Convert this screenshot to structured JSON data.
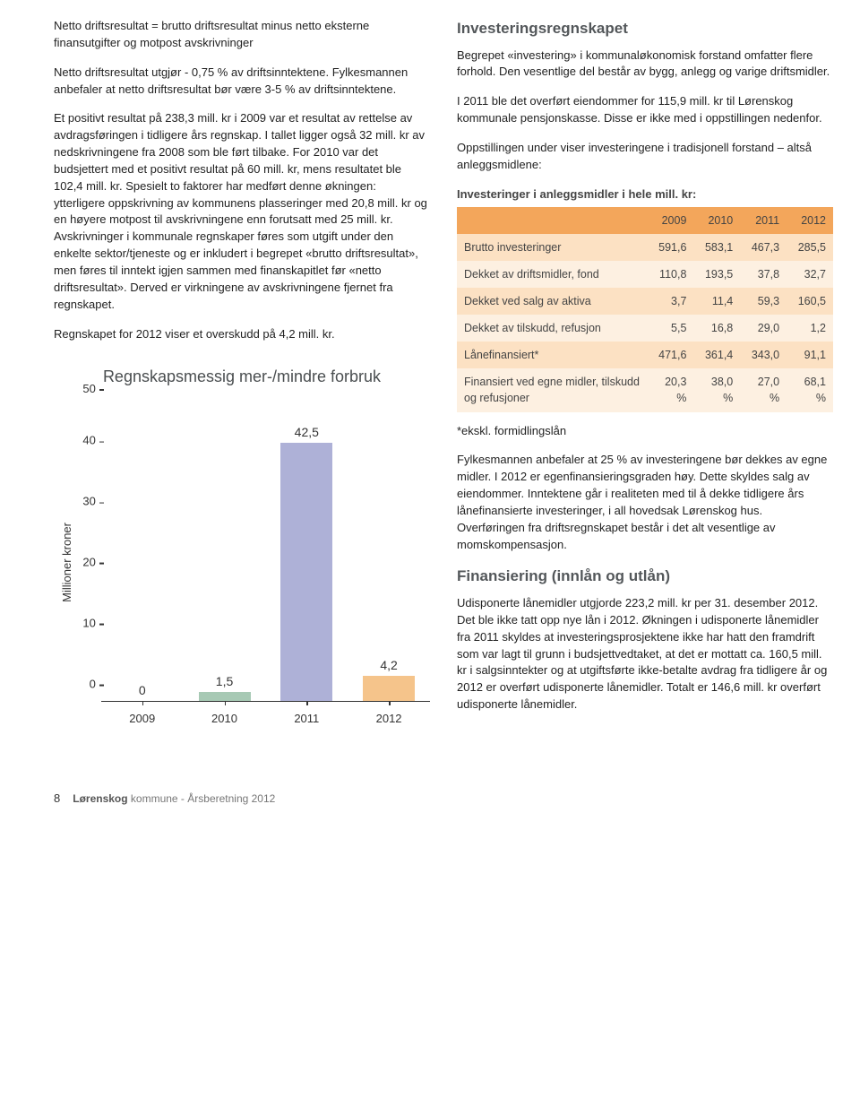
{
  "left": {
    "p1": "Netto driftsresultat = brutto driftsresultat minus netto eksterne finansutgifter og motpost avskrivninger",
    "p2": "Netto driftsresultat utgjør - 0,75 % av driftsinntektene. Fylkesmannen anbefaler at netto driftsresultat bør være 3-5 % av driftsinntektene.",
    "p3": "Et positivt resultat på 238,3 mill. kr i 2009 var et resultat av rettelse av avdragsføringen i tidligere års regnskap. I tallet ligger også 32 mill. kr av nedskrivningene fra 2008 som ble ført tilbake. For 2010 var det budsjettert med et positivt resultat på 60 mill. kr, mens resultatet ble 102,4 mill. kr. Spesielt to faktorer har medført denne økningen: ytterligere oppskrivning av kommunens plasseringer med 20,8 mill. kr og en høyere motpost til avskrivningene enn forutsatt med 25 mill. kr. Avskrivninger i kommunale regnskaper føres som utgift under den enkelte sektor/tjeneste og er inkludert i begrepet «brutto driftsresultat», men føres til inntekt igjen sammen med finanskapitlet før «netto driftsresultat». Derved er virkningene av avskrivningene fjernet fra regnskapet.",
    "p4": "Regnskapet for 2012 viser et overskudd på 4,2 mill. kr."
  },
  "chart": {
    "title": "Regnskapsmessig mer-/mindre forbruk",
    "ylabel": "Millioner kroner",
    "ylim_max": 50,
    "yticks": [
      50,
      40,
      30,
      20,
      10,
      0
    ],
    "categories": [
      "2009",
      "2010",
      "2011",
      "2012"
    ],
    "values": [
      0,
      1.5,
      42.5,
      4.2
    ],
    "value_labels": [
      "0",
      "1,5",
      "42,5",
      "4,2"
    ],
    "bar_colors": [
      "#d3aaa1",
      "#a7c9b4",
      "#aeb1d7",
      "#f5c48b"
    ]
  },
  "right": {
    "h1": "Investeringsregnskapet",
    "p5": "Begrepet «investering» i kommunaløkonomisk forstand omfatter flere forhold. Den vesentlige del består av bygg, anlegg og varige driftsmidler.",
    "p6": "I 2011 ble det overført eiendommer for 115,9 mill. kr til Lørenskog kommunale pensjonskasse. Disse er ikke med i oppstillingen nedenfor.",
    "p7": "Oppstillingen under viser investeringene i tradisjonell forstand – altså anleggsmidlene:",
    "table_caption": "Investeringer i anleggsmidler i hele mill. kr:",
    "table": {
      "header": [
        "",
        "2009",
        "2010",
        "2011",
        "2012"
      ],
      "rows": [
        [
          "Brutto investeringer",
          "591,6",
          "583,1",
          "467,3",
          "285,5"
        ],
        [
          "Dekket av driftsmidler, fond",
          "110,8",
          "193,5",
          "37,8",
          "32,7"
        ],
        [
          "Dekket ved salg av aktiva",
          "3,7",
          "11,4",
          "59,3",
          "160,5"
        ],
        [
          "Dekket av tilskudd, refusjon",
          "5,5",
          "16,8",
          "29,0",
          "1,2"
        ],
        [
          "Lånefinansiert*",
          "471,6",
          "361,4",
          "343,0",
          "91,1"
        ],
        [
          "Finansiert ved egne midler, tilskudd og refusjoner",
          "20,3 %",
          "38,0 %",
          "27,0 %",
          "68,1 %"
        ]
      ]
    },
    "footnote": "*ekskl. formidlingslån",
    "p8": "Fylkesmannen anbefaler at 25 % av investeringene bør dekkes av egne midler. I 2012 er egenfinansieringsgraden høy. Dette skyldes salg av eiendommer. Inntektene går i realiteten med til å dekke tidligere års lånefinansierte investeringer, i all hovedsak Lørenskog hus. Overføringen fra driftsregnskapet består i det alt vesentlige av momskompensasjon.",
    "h2": "Finansiering (innlån og utlån)",
    "p9": "Udisponerte lånemidler utgjorde 223,2 mill. kr per 31. desember 2012. Det ble ikke tatt opp nye lån i 2012. Økningen i udisponerte lånemidler fra 2011 skyldes at investeringsprosjektene ikke har hatt den framdrift som var lagt til grunn i budsjettvedtaket, at det er mottatt ca. 160,5 mill. kr i salgsinntekter og at utgiftsførte ikke-betalte avdrag fra tidligere år og 2012 er overført udisponerte lånemidler. Totalt er 146,6 mill. kr overført udisponerte lånemidler."
  },
  "footer": {
    "page": "8",
    "brand_bold": "Lørenskog",
    "brand_rest": " kommune - Årsberetning 2012"
  }
}
